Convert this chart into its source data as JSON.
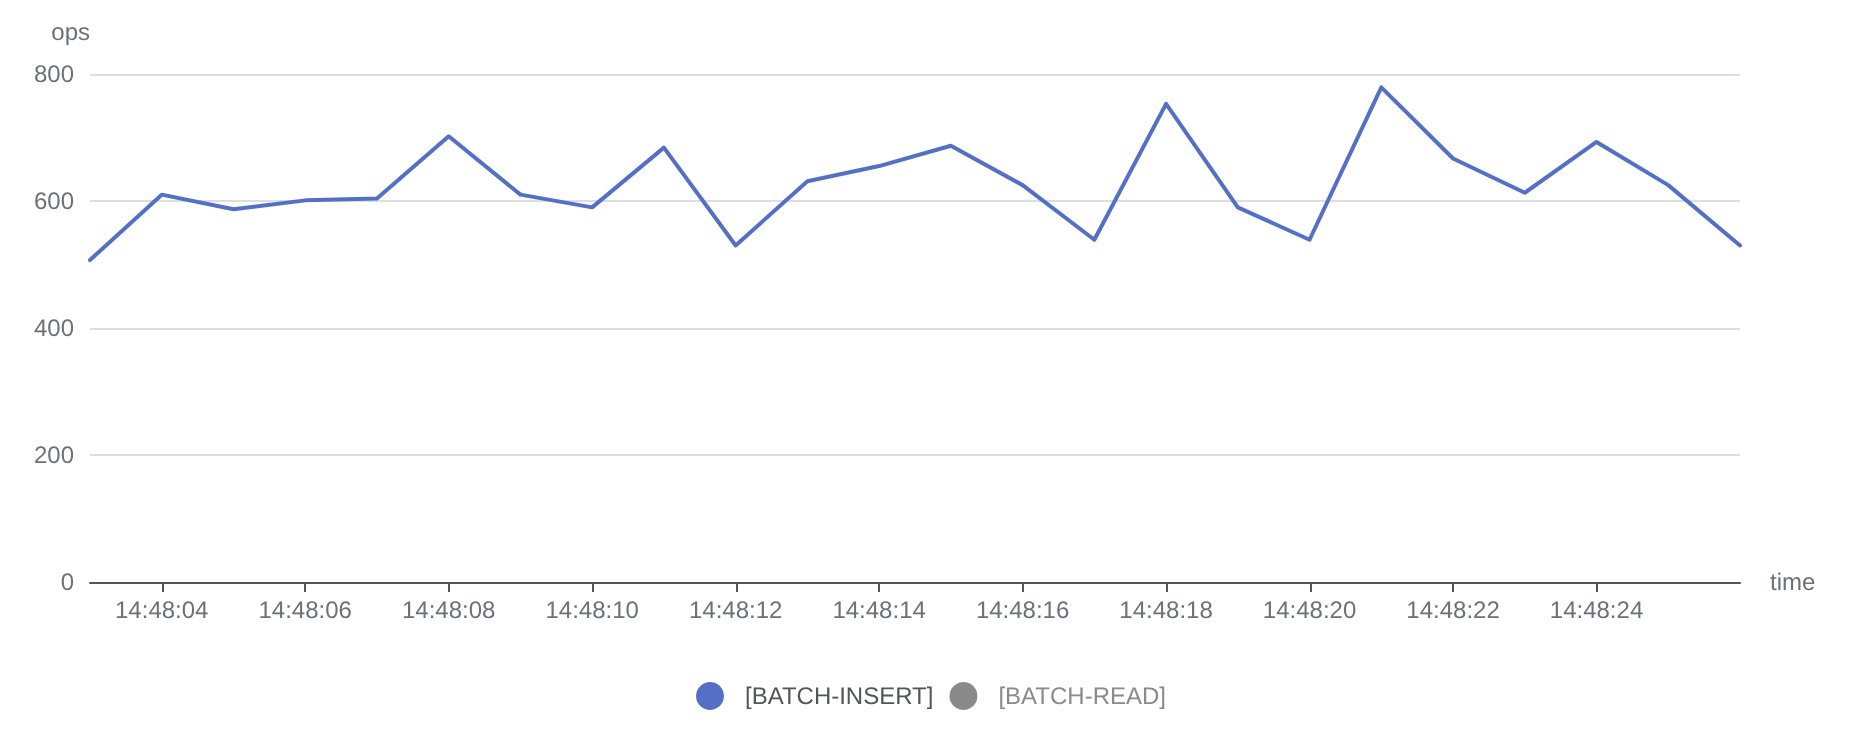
{
  "chart_data": {
    "type": "line",
    "xlabel": "time",
    "ylabel": "ops",
    "categories": [
      null,
      "14:48:04",
      null,
      "14:48:06",
      null,
      "14:48:08",
      null,
      "14:48:10",
      null,
      "14:48:12",
      null,
      "14:48:14",
      null,
      "14:48:16",
      null,
      "14:48:18",
      null,
      "14:48:20",
      null,
      "14:48:22",
      null,
      "14:48:24",
      null,
      null
    ],
    "series": [
      {
        "name": "[BATCH-INSERT]",
        "color": "#5470c6",
        "values": [
          507,
          610,
          587,
          601,
          604,
          702,
          610,
          590,
          684,
          530,
          631,
          655,
          687,
          625,
          539,
          753,
          590,
          539,
          779,
          667,
          613,
          693,
          625,
          530
        ]
      },
      {
        "name": "[BATCH-READ]",
        "values": [
          null,
          null,
          null,
          null,
          null,
          null,
          null,
          null,
          null,
          null,
          null,
          null,
          null,
          null,
          null,
          null,
          null,
          null,
          null,
          null,
          null,
          null,
          null,
          null
        ]
      }
    ],
    "ylim": [
      0,
      800
    ],
    "yticks": [
      0,
      200,
      400,
      600,
      800
    ],
    "grid": "y",
    "legend": "bottom",
    "marker": "none",
    "line_style": "solid"
  }
}
